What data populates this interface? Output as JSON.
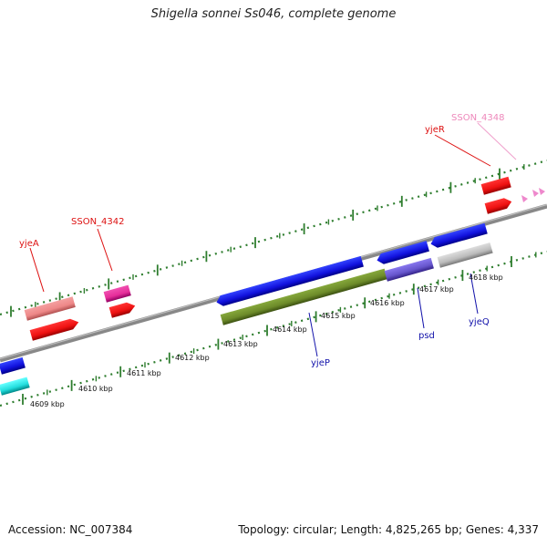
{
  "header": {
    "title": "Shigella sonnei Ss046, complete genome"
  },
  "footer": {
    "accession": "Accession: NC_007384",
    "stats": "Topology: circular; Length: 4,825,265 bp; Genes: 4,337"
  },
  "colors": {
    "backbone": "#8a8a8a",
    "ticks": "#2e7d2e",
    "red": "#ee1111",
    "salmon": "#ee8888",
    "magenta": "#e62d9a",
    "blue": "#1111dd",
    "olive": "#6d8b2a",
    "slateblue": "#6655cc",
    "silver": "#bbbbbb",
    "cyan": "#22dddd",
    "pink": "#ee88cc",
    "label_red": "#dd1111",
    "label_blue": "#1111aa",
    "label_pink": "#ee88bb"
  },
  "scale_labels": [
    "4609 kbp",
    "4610 kbp",
    "4611 kbp",
    "4612 kbp",
    "4613 kbp",
    "4614 kbp",
    "4615 kbp",
    "4616 kbp",
    "4617 kbp",
    "4618 kbp"
  ],
  "gene_labels": [
    "SSON_4348",
    "yjeR",
    "SSON_4342",
    "yjeA",
    "yjeP",
    "psd",
    "yjeQ"
  ]
}
